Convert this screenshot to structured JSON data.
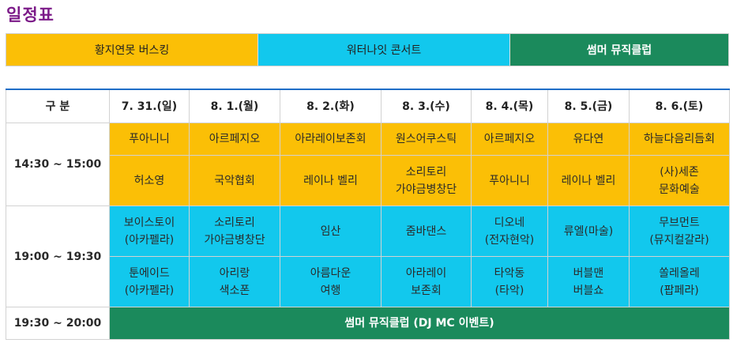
{
  "title": "일정표",
  "legend": [
    "황지연못 버스킹",
    "워터나잇 콘서트",
    "썸머 뮤직클럽"
  ],
  "header": [
    "구 분",
    "7. 31.(일)",
    "8. 1.(월)",
    "8. 2.(화)",
    "8. 3.(수)",
    "8. 4.(목)",
    "8. 5.(금)",
    "8. 6.(토)"
  ],
  "slots": [
    "14:30 ~ 15:00",
    "19:00 ~ 19:30",
    "19:30 ~ 20:00"
  ],
  "busking_1": [
    [
      "푸아니니"
    ],
    [
      "아르페지오"
    ],
    [
      "아라레이보존회"
    ],
    [
      "원스어쿠스틱"
    ],
    [
      "아르페지오"
    ],
    [
      "유다연"
    ],
    [
      "하늘다음리듬회"
    ]
  ],
  "busking_2": [
    [
      "허소영"
    ],
    [
      "국악협회"
    ],
    [
      "레이나 벨리"
    ],
    [
      "소리토리",
      "가야금병창단"
    ],
    [
      "푸아니니"
    ],
    [
      "레이나 벨리"
    ],
    [
      "(사)세존",
      "문화예술"
    ]
  ],
  "concert_1": [
    [
      "보이스토이",
      "(아카펠라)"
    ],
    [
      "소리토리",
      "가야금병창단"
    ],
    [
      "임산"
    ],
    [
      "줌바댄스"
    ],
    [
      "디오네",
      "(전자현악)"
    ],
    [
      "류엘(마술)"
    ],
    [
      "무브먼트",
      "(뮤지컬갈라)"
    ]
  ],
  "concert_2": [
    [
      "툰에이드",
      "(아카펠라)"
    ],
    [
      "아리랑",
      "색소폰"
    ],
    [
      "아름다운",
      "여행"
    ],
    [
      "아라레이",
      "보존회"
    ],
    [
      "타악동",
      "(타악)"
    ],
    [
      "버블맨",
      "버블쇼"
    ],
    [
      "쏠레올레",
      "(팝페라)"
    ]
  ],
  "music_club": "썸머 뮤직클럽 (DJ MC 이벤트)",
  "colors": {
    "busking": "#fbbf06",
    "concert": "#12c8ed",
    "club": "#1b8a5c",
    "title": "#7b1a88"
  }
}
